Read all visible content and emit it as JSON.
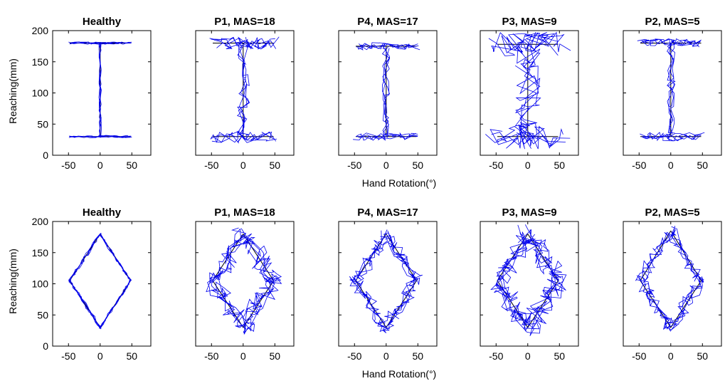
{
  "figure": {
    "x_axis_label": "Hand Rotation(°)",
    "y_axis_label": "Reaching(mm)"
  },
  "chart_data": [
    {
      "type": "line",
      "row": "top",
      "title": "Healthy",
      "xlim": [
        -75,
        80
      ],
      "ylim": [
        0,
        200
      ],
      "xticks": [
        "-50",
        "0",
        "50"
      ],
      "yticks": [
        "0",
        "50",
        "100",
        "150",
        "200"
      ],
      "target_color": "#000000",
      "trace_color": "#0000ee",
      "target": {
        "x": [
          -48,
          48,
          null,
          0,
          0,
          null,
          -48,
          48
        ],
        "y": [
          180,
          180,
          null,
          180,
          30,
          null,
          30,
          30
        ]
      },
      "noise": 2
    },
    {
      "type": "line",
      "row": "top",
      "title": "P1, MAS=18",
      "xlim": [
        -75,
        80
      ],
      "ylim": [
        0,
        200
      ],
      "xticks": [
        "-50",
        "0",
        "50"
      ],
      "yticks": [
        "0",
        "50",
        "100",
        "150",
        "200"
      ],
      "target_color": "#000000",
      "trace_color": "#0000ee",
      "target": {
        "x": [
          -48,
          48,
          null,
          0,
          0,
          null,
          -48,
          48
        ],
        "y": [
          180,
          180,
          null,
          180,
          30,
          null,
          30,
          30
        ]
      },
      "noise": 10
    },
    {
      "type": "line",
      "row": "top",
      "title": "P4, MAS=17",
      "xlim": [
        -75,
        80
      ],
      "ylim": [
        0,
        200
      ],
      "xticks": [
        "-50",
        "0",
        "50"
      ],
      "yticks": [
        "0",
        "50",
        "100",
        "150",
        "200"
      ],
      "target_color": "#000000",
      "trace_color": "#0000ee",
      "target": {
        "x": [
          -48,
          48,
          null,
          0,
          0,
          null,
          -48,
          48
        ],
        "y": [
          175,
          175,
          null,
          175,
          30,
          null,
          30,
          30
        ]
      },
      "noise": 6
    },
    {
      "type": "line",
      "row": "top",
      "title": "P3, MAS=9",
      "xlim": [
        -75,
        80
      ],
      "ylim": [
        0,
        200
      ],
      "xticks": [
        "-50",
        "0",
        "50"
      ],
      "yticks": [
        "0",
        "50",
        "100",
        "150",
        "200"
      ],
      "target_color": "#000000",
      "trace_color": "#0000ee",
      "target": {
        "x": [
          -48,
          48,
          null,
          0,
          0,
          null,
          -48,
          48
        ],
        "y": [
          178,
          178,
          null,
          178,
          30,
          null,
          30,
          30
        ]
      },
      "noise": 20
    },
    {
      "type": "line",
      "row": "top",
      "title": "P2, MAS=5",
      "xlim": [
        -75,
        80
      ],
      "ylim": [
        0,
        200
      ],
      "xticks": [
        "-50",
        "0",
        "50"
      ],
      "yticks": [
        "0",
        "50",
        "100",
        "150",
        "200"
      ],
      "target_color": "#000000",
      "trace_color": "#0000ee",
      "target": {
        "x": [
          -48,
          48,
          null,
          0,
          0,
          null,
          -48,
          48
        ],
        "y": [
          180,
          180,
          null,
          180,
          30,
          null,
          30,
          30
        ]
      },
      "noise": 7
    },
    {
      "type": "line",
      "row": "bottom",
      "title": "Healthy",
      "xlim": [
        -75,
        80
      ],
      "ylim": [
        0,
        200
      ],
      "xticks": [
        "-50",
        "0",
        "50"
      ],
      "yticks": [
        "0",
        "50",
        "100",
        "150",
        "200"
      ],
      "target_color": "#000000",
      "trace_color": "#0000ee",
      "target": {
        "x": [
          0,
          48,
          0,
          -48,
          0
        ],
        "y": [
          180,
          105,
          30,
          105,
          180
        ]
      },
      "noise": 2
    },
    {
      "type": "line",
      "row": "bottom",
      "title": "P1, MAS=18",
      "xlim": [
        -75,
        80
      ],
      "ylim": [
        0,
        200
      ],
      "xticks": [
        "-50",
        "0",
        "50"
      ],
      "yticks": [
        "0",
        "50",
        "100",
        "150",
        "200"
      ],
      "target_color": "#000000",
      "trace_color": "#0000ee",
      "target": {
        "x": [
          0,
          48,
          0,
          -48,
          0
        ],
        "y": [
          180,
          105,
          30,
          105,
          180
        ]
      },
      "noise": 14
    },
    {
      "type": "line",
      "row": "bottom",
      "title": "P4, MAS=17",
      "xlim": [
        -75,
        80
      ],
      "ylim": [
        0,
        200
      ],
      "xticks": [
        "-50",
        "0",
        "50"
      ],
      "yticks": [
        "0",
        "50",
        "100",
        "150",
        "200"
      ],
      "target_color": "#000000",
      "trace_color": "#0000ee",
      "target": {
        "x": [
          0,
          48,
          0,
          -48,
          0
        ],
        "y": [
          180,
          105,
          30,
          105,
          180
        ]
      },
      "noise": 10
    },
    {
      "type": "line",
      "row": "bottom",
      "title": "P3, MAS=9",
      "xlim": [
        -75,
        80
      ],
      "ylim": [
        0,
        200
      ],
      "xticks": [
        "-50",
        "0",
        "50"
      ],
      "yticks": [
        "0",
        "50",
        "100",
        "150",
        "200"
      ],
      "target_color": "#000000",
      "trace_color": "#0000ee",
      "target": {
        "x": [
          0,
          48,
          0,
          -48,
          0
        ],
        "y": [
          180,
          105,
          30,
          105,
          180
        ]
      },
      "noise": 16
    },
    {
      "type": "line",
      "row": "bottom",
      "title": "P2, MAS=5",
      "xlim": [
        -75,
        80
      ],
      "ylim": [
        0,
        200
      ],
      "xticks": [
        "-50",
        "0",
        "50"
      ],
      "yticks": [
        "0",
        "50",
        "100",
        "150",
        "200"
      ],
      "target_color": "#000000",
      "trace_color": "#0000ee",
      "target": {
        "x": [
          0,
          48,
          0,
          -48,
          0
        ],
        "y": [
          185,
          105,
          30,
          105,
          185
        ]
      },
      "noise": 9
    }
  ]
}
